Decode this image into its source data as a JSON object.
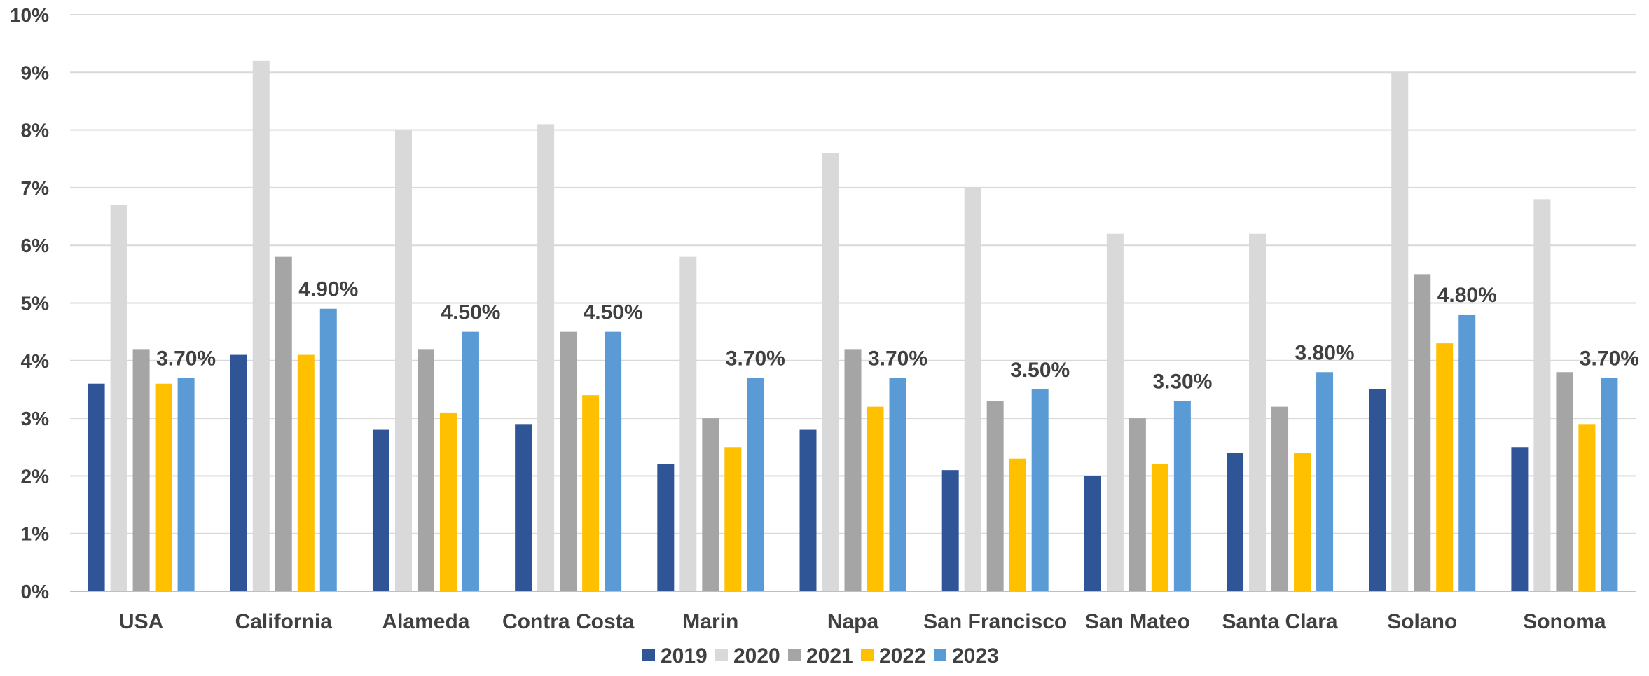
{
  "chart_data": {
    "type": "bar",
    "categories": [
      "USA",
      "California",
      "Alameda",
      "Contra Costa",
      "Marin",
      "Napa",
      "San Francisco",
      "San Mateo",
      "Santa Clara",
      "Solano",
      "Sonoma"
    ],
    "series": [
      {
        "name": "2019",
        "color": "#2F5597",
        "values": [
          3.6,
          4.1,
          2.8,
          2.9,
          2.2,
          2.8,
          2.1,
          2.0,
          2.4,
          3.5,
          2.5
        ]
      },
      {
        "name": "2020",
        "color": "#D9D9D9",
        "values": [
          6.7,
          9.2,
          8.0,
          8.1,
          5.8,
          7.6,
          7.0,
          6.2,
          6.2,
          9.0,
          6.8
        ]
      },
      {
        "name": "2021",
        "color": "#A5A5A5",
        "values": [
          4.2,
          5.8,
          4.2,
          4.5,
          3.0,
          4.2,
          3.3,
          3.0,
          3.2,
          5.5,
          3.8
        ]
      },
      {
        "name": "2022",
        "color": "#FFC000",
        "values": [
          3.6,
          4.1,
          3.1,
          3.4,
          2.5,
          3.2,
          2.3,
          2.2,
          2.4,
          4.3,
          2.9
        ]
      },
      {
        "name": "2023",
        "color": "#5B9BD5",
        "values": [
          3.7,
          4.9,
          4.5,
          4.5,
          3.7,
          3.7,
          3.5,
          3.3,
          3.8,
          4.8,
          3.7
        ]
      }
    ],
    "data_labels": [
      "3.70%",
      "4.90%",
      "4.50%",
      "4.50%",
      "3.70%",
      "3.70%",
      "3.50%",
      "3.30%",
      "3.80%",
      "4.80%",
      "3.70%"
    ],
    "y_ticks": [
      "0%",
      "1%",
      "2%",
      "3%",
      "4%",
      "5%",
      "6%",
      "7%",
      "8%",
      "9%",
      "10%"
    ],
    "ylim": [
      0,
      10
    ],
    "grid": true,
    "legend_position": "bottom"
  }
}
